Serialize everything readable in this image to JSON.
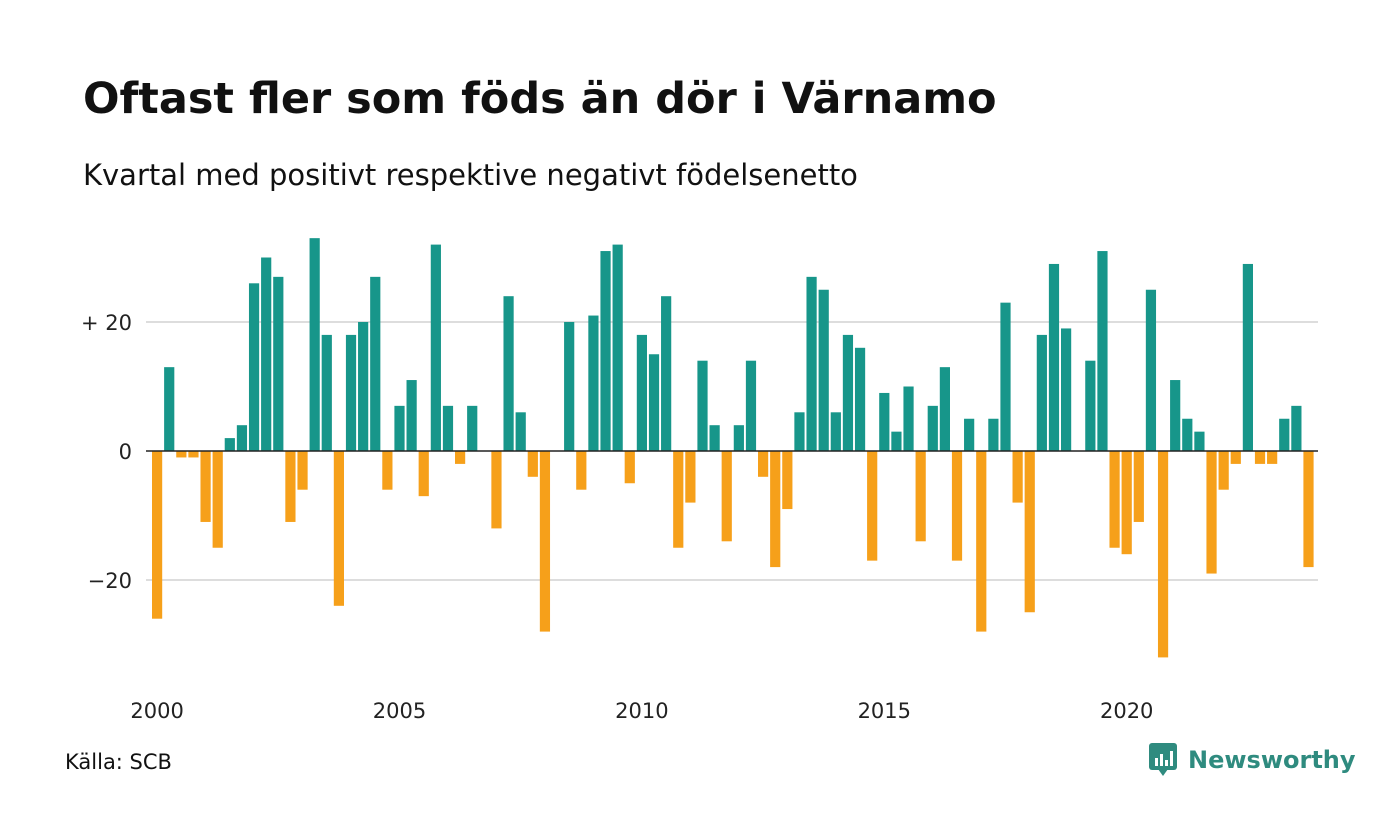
{
  "title": "Oftast fler som föds än dör i Värnamo",
  "subtitle": "Kvartal med positivt respektive negativt födelsenetto",
  "source": "Källa: SCB",
  "brand": {
    "name": "Newsworthy",
    "icon": "newsworthy-logo-icon"
  },
  "colors": {
    "positive": "#17968a",
    "negative": "#f6a01a",
    "grid": "#dddddd",
    "axis": "#222222"
  },
  "chart_data": {
    "type": "bar",
    "start": {
      "year": 2000,
      "quarter": 1
    },
    "values": [
      -26,
      13,
      -1,
      -1,
      -11,
      -15,
      2,
      4,
      26,
      30,
      27,
      -11,
      -6,
      33,
      18,
      -24,
      18,
      20,
      27,
      -6,
      7,
      11,
      -7,
      32,
      7,
      -2,
      7,
      0,
      -12,
      24,
      6,
      -4,
      -28,
      0,
      20,
      -6,
      21,
      31,
      32,
      -5,
      18,
      15,
      24,
      -15,
      -8,
      14,
      4,
      -14,
      4,
      14,
      -4,
      -18,
      -9,
      6,
      27,
      25,
      6,
      18,
      16,
      -17,
      9,
      3,
      10,
      -14,
      7,
      13,
      -17,
      5,
      -28,
      5,
      23,
      -8,
      -25,
      18,
      29,
      19,
      0,
      14,
      31,
      -15,
      -16,
      -11,
      25,
      -32,
      11,
      5,
      3,
      -19,
      -6,
      -2,
      29,
      -2,
      -2,
      5,
      7,
      -18
    ],
    "ylim": [
      -35,
      35
    ],
    "yticks": [
      {
        "value": 20,
        "label": "+ 20"
      },
      {
        "value": 0,
        "label": "0"
      },
      {
        "value": -20,
        "label": "−20"
      }
    ],
    "xticks": [
      {
        "year": 2000,
        "label": "2000"
      },
      {
        "year": 2005,
        "label": "2005"
      },
      {
        "year": 2010,
        "label": "2010"
      },
      {
        "year": 2015,
        "label": "2015"
      },
      {
        "year": 2020,
        "label": "2020"
      }
    ],
    "grid": true,
    "legend": "none"
  }
}
